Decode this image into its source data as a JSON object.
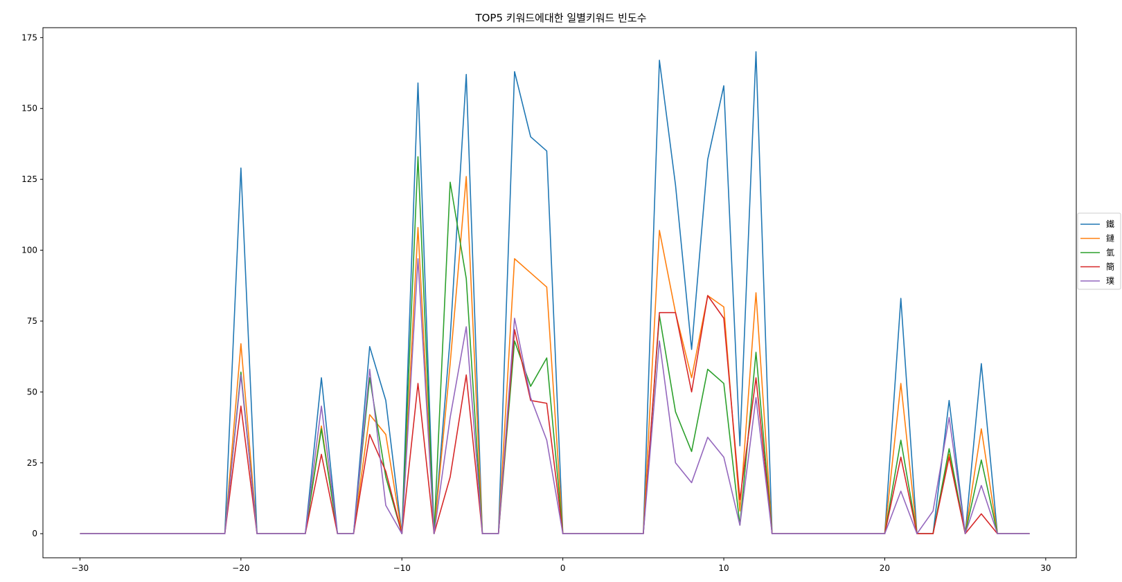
{
  "chart_data": {
    "type": "line",
    "title": "TOP5 키워드에대한 일별키워드 빈도수",
    "xlabel": "",
    "ylabel": "",
    "xlim": [
      -32.3,
      31.9
    ],
    "ylim": [
      -8.5,
      178.5
    ],
    "xticks": [
      -30,
      -20,
      -10,
      0,
      10,
      20,
      30
    ],
    "xtick_labels": [
      "−30",
      "−20",
      "−10",
      "0",
      "10",
      "20",
      "30"
    ],
    "yticks": [
      0,
      25,
      50,
      75,
      100,
      125,
      150,
      175
    ],
    "ytick_labels": [
      "0",
      "25",
      "50",
      "75",
      "100",
      "125",
      "150",
      "175"
    ],
    "grid": false,
    "legend_position": "right",
    "x": [
      -30,
      -29,
      -28,
      -27,
      -26,
      -25,
      -24,
      -23,
      -22,
      -21,
      -20,
      -19,
      -18,
      -17,
      -16,
      -15,
      -14,
      -13,
      -12,
      -11,
      -10,
      -9,
      -8,
      -7,
      -6,
      -5,
      -4,
      -3,
      -2,
      -1,
      0,
      1,
      2,
      3,
      4,
      5,
      6,
      7,
      8,
      9,
      10,
      11,
      12,
      13,
      14,
      15,
      16,
      17,
      18,
      19,
      20,
      21,
      22,
      23,
      24,
      25,
      26,
      27,
      28,
      29
    ],
    "series": [
      {
        "name": "鐵",
        "color": "#1f77b4",
        "values": [
          0,
          0,
          0,
          0,
          0,
          0,
          0,
          0,
          0,
          0,
          129,
          0,
          0,
          0,
          0,
          55,
          0,
          0,
          66,
          47,
          0,
          159,
          0,
          69,
          162,
          0,
          0,
          163,
          140,
          135,
          0,
          0,
          0,
          0,
          0,
          0,
          167,
          123,
          65,
          132,
          158,
          31,
          170,
          0,
          0,
          0,
          0,
          0,
          0,
          0,
          0,
          83,
          0,
          0,
          47,
          0,
          60,
          0,
          0,
          0
        ]
      },
      {
        "name": "鏈",
        "color": "#ff7f0e",
        "values": [
          0,
          0,
          0,
          0,
          0,
          0,
          0,
          0,
          0,
          0,
          67,
          0,
          0,
          0,
          0,
          38,
          0,
          0,
          42,
          35,
          0,
          108,
          0,
          60,
          126,
          0,
          0,
          97,
          92,
          87,
          0,
          0,
          0,
          0,
          0,
          0,
          107,
          78,
          55,
          84,
          80,
          8,
          85,
          0,
          0,
          0,
          0,
          0,
          0,
          0,
          0,
          53,
          0,
          0,
          28,
          0,
          37,
          0,
          0,
          0
        ]
      },
      {
        "name": "氫",
        "color": "#2ca02c",
        "values": [
          0,
          0,
          0,
          0,
          0,
          0,
          0,
          0,
          0,
          0,
          57,
          0,
          0,
          0,
          0,
          37,
          0,
          0,
          55,
          20,
          0,
          133,
          0,
          124,
          90,
          0,
          0,
          68,
          52,
          62,
          0,
          0,
          0,
          0,
          0,
          0,
          77,
          43,
          29,
          58,
          53,
          3,
          64,
          0,
          0,
          0,
          0,
          0,
          0,
          0,
          0,
          33,
          0,
          0,
          30,
          0,
          26,
          0,
          0,
          0
        ]
      },
      {
        "name": "簡",
        "color": "#d62728",
        "values": [
          0,
          0,
          0,
          0,
          0,
          0,
          0,
          0,
          0,
          0,
          45,
          0,
          0,
          0,
          0,
          28,
          0,
          0,
          35,
          22,
          0,
          53,
          0,
          20,
          56,
          0,
          0,
          72,
          47,
          46,
          0,
          0,
          0,
          0,
          0,
          0,
          78,
          78,
          50,
          84,
          76,
          12,
          55,
          0,
          0,
          0,
          0,
          0,
          0,
          0,
          0,
          27,
          0,
          0,
          27,
          0,
          7,
          0,
          0,
          0
        ]
      },
      {
        "name": "璞",
        "color": "#9467bd",
        "values": [
          0,
          0,
          0,
          0,
          0,
          0,
          0,
          0,
          0,
          0,
          56,
          0,
          0,
          0,
          0,
          45,
          0,
          0,
          58,
          10,
          0,
          97,
          0,
          41,
          73,
          0,
          0,
          76,
          48,
          33,
          0,
          0,
          0,
          0,
          0,
          0,
          68,
          25,
          18,
          34,
          27,
          3,
          48,
          0,
          0,
          0,
          0,
          0,
          0,
          0,
          0,
          15,
          0,
          8,
          41,
          0,
          17,
          0,
          0,
          0
        ]
      }
    ]
  }
}
